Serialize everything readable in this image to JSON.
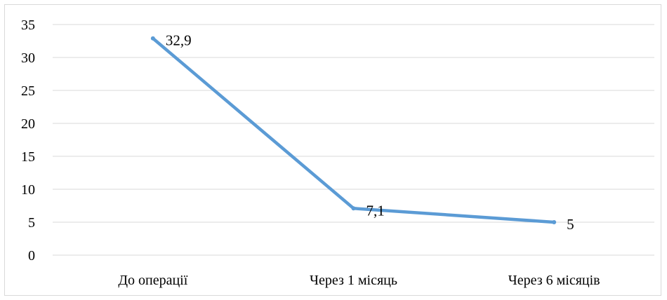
{
  "chart_data": {
    "type": "line",
    "categories": [
      "До операції",
      "Через 1 місяць",
      "Через 6 місяців"
    ],
    "series": [
      {
        "values": [
          32.9,
          7.1,
          5
        ],
        "data_labels": [
          "32,9",
          "7,1",
          "5"
        ],
        "color": "#5b9bd5"
      }
    ],
    "y_ticks": [
      "0",
      "5",
      "10",
      "15",
      "20",
      "25",
      "30",
      "35"
    ],
    "ylim": [
      0,
      35
    ],
    "grid": true,
    "gridline_color": "#d9d9d9",
    "title": "",
    "xlabel": "",
    "ylabel": "",
    "legend": "none"
  }
}
